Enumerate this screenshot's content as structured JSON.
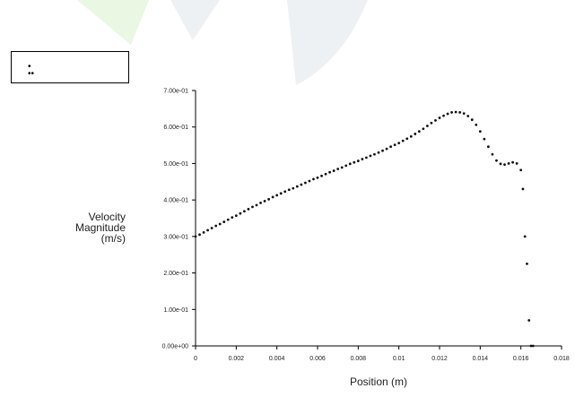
{
  "colors": {
    "watermark_green": "#e9f7e3",
    "watermark_grey": "#eef1f4",
    "axis": "#000000",
    "points": "#111111"
  },
  "legend": {
    "entries": [
      ""
    ]
  },
  "chart_data": {
    "type": "scatter",
    "title": "",
    "xlabel": "Position (m)",
    "ylabel_lines": [
      "Velocity",
      "Magnitude",
      "(m/s)"
    ],
    "xlim": [
      0,
      0.018
    ],
    "ylim": [
      0,
      0.7
    ],
    "x_ticks": [
      "0",
      "0.002",
      "0.004",
      "0.006",
      "0.008",
      "0.01",
      "0.012",
      "0.014",
      "0.016",
      "0.018"
    ],
    "y_ticks": [
      "0.00e+00",
      "1.00e-01",
      "2.00e-01",
      "3.00e-01",
      "4.00e-01",
      "5.00e-01",
      "6.00e-01",
      "7.00e-01"
    ],
    "grid": false,
    "legend_position": "top-left",
    "series": [
      {
        "x": [
          0.0,
          0.0002,
          0.0004,
          0.0006,
          0.0008,
          0.001,
          0.0012,
          0.0014,
          0.0016,
          0.0018,
          0.002,
          0.0022,
          0.0024,
          0.0026,
          0.0028,
          0.003,
          0.0032,
          0.0034,
          0.0036,
          0.0038,
          0.004,
          0.0042,
          0.0044,
          0.0046,
          0.0048,
          0.005,
          0.0052,
          0.0054,
          0.0056,
          0.0058,
          0.006,
          0.0062,
          0.0064,
          0.0066,
          0.0068,
          0.007,
          0.0072,
          0.0074,
          0.0076,
          0.0078,
          0.008,
          0.0082,
          0.0084,
          0.0086,
          0.0088,
          0.009,
          0.0092,
          0.0094,
          0.0096,
          0.0098,
          0.01,
          0.0102,
          0.0104,
          0.0106,
          0.0108,
          0.011,
          0.0112,
          0.0114,
          0.0116,
          0.0118,
          0.012,
          0.0122,
          0.0124,
          0.0126,
          0.0128,
          0.013,
          0.0132,
          0.0134,
          0.0136,
          0.0138,
          0.014,
          0.0142,
          0.0144,
          0.0146,
          0.0148,
          0.015,
          0.0152,
          0.0154,
          0.0156,
          0.0158,
          0.016,
          0.0161,
          0.0162,
          0.0163,
          0.0164,
          0.0165,
          0.0166
        ],
        "y": [
          0.3,
          0.305,
          0.311,
          0.317,
          0.323,
          0.329,
          0.334,
          0.34,
          0.346,
          0.352,
          0.357,
          0.363,
          0.369,
          0.375,
          0.381,
          0.386,
          0.392,
          0.397,
          0.402,
          0.408,
          0.413,
          0.418,
          0.423,
          0.428,
          0.432,
          0.437,
          0.442,
          0.447,
          0.452,
          0.457,
          0.461,
          0.466,
          0.471,
          0.476,
          0.48,
          0.485,
          0.489,
          0.494,
          0.499,
          0.503,
          0.507,
          0.512,
          0.516,
          0.521,
          0.525,
          0.53,
          0.535,
          0.54,
          0.546,
          0.551,
          0.556,
          0.562,
          0.568,
          0.574,
          0.581,
          0.588,
          0.595,
          0.603,
          0.611,
          0.618,
          0.625,
          0.631,
          0.636,
          0.64,
          0.641,
          0.64,
          0.637,
          0.63,
          0.62,
          0.606,
          0.588,
          0.567,
          0.546,
          0.525,
          0.508,
          0.499,
          0.497,
          0.5,
          0.503,
          0.5,
          0.482,
          0.43,
          0.3,
          0.225,
          0.07,
          0.0,
          0.0
        ]
      }
    ]
  }
}
